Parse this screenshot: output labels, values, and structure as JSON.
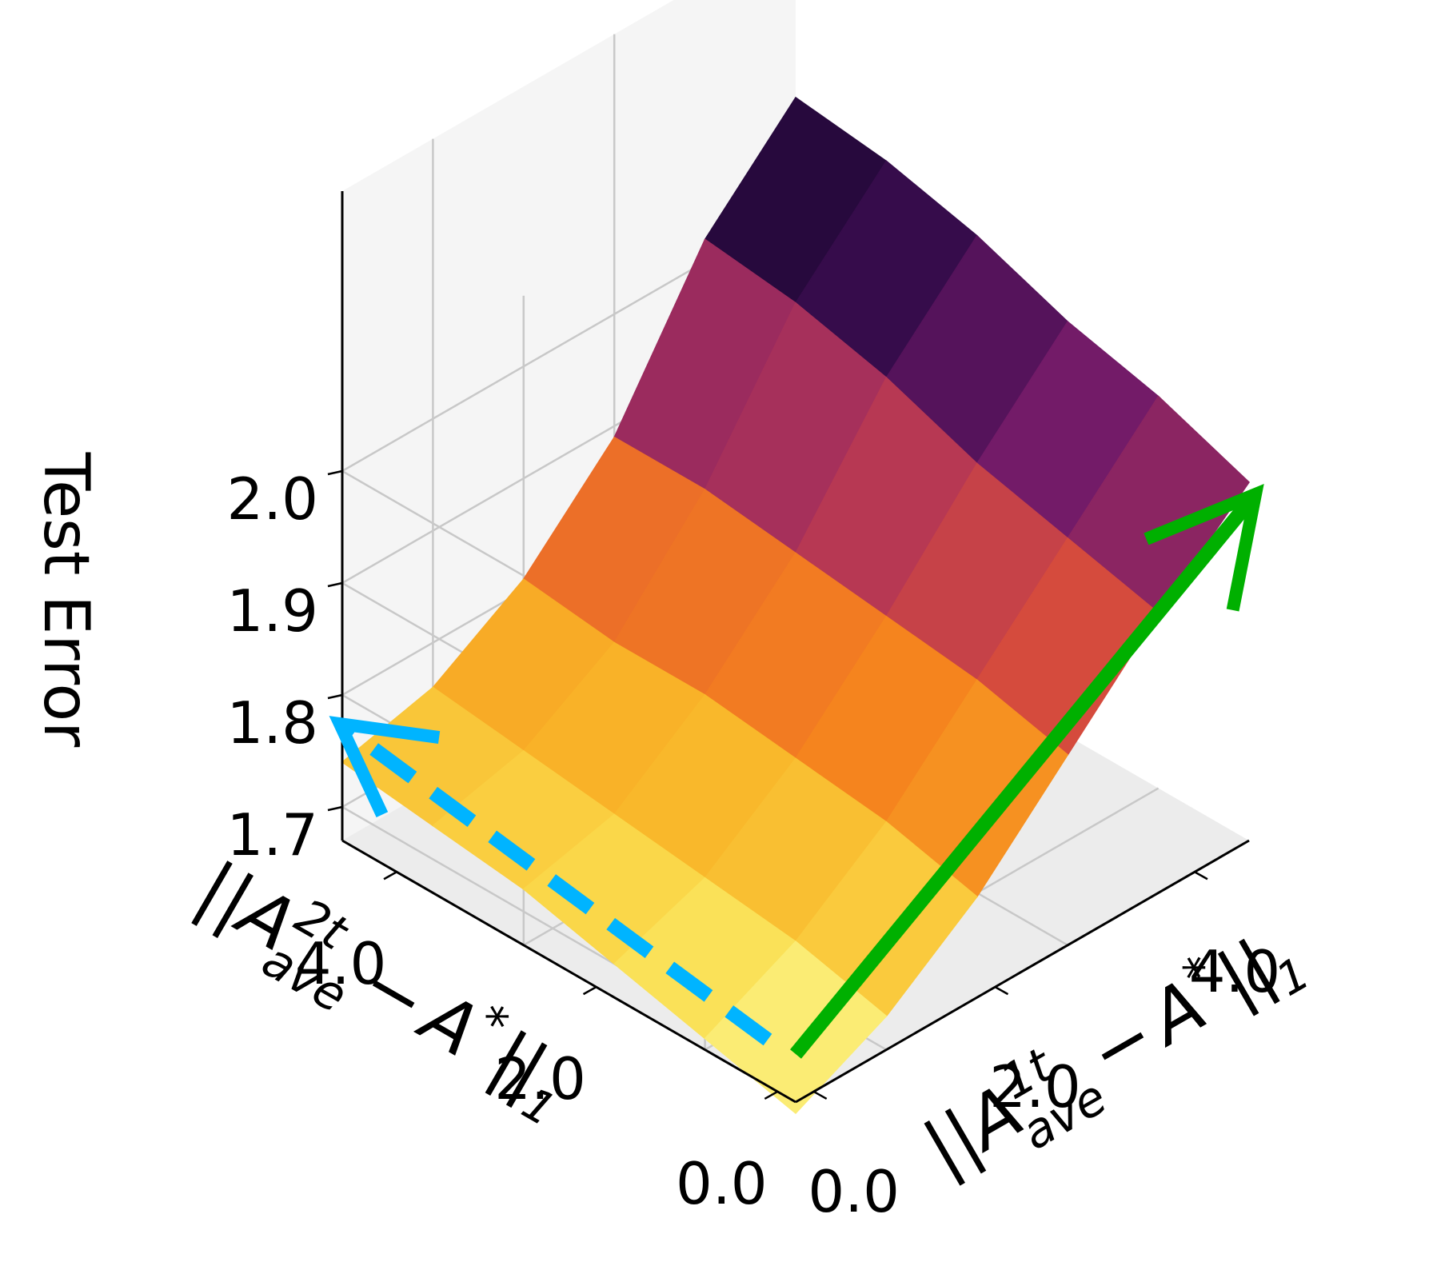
{
  "chart_data": {
    "type": "surface3d",
    "title": "",
    "zlabel": "Test Error",
    "xlabel": {
      "prefix": "||",
      "base": "A",
      "superscript": "1t",
      "subscript": "ave",
      "minus": "−",
      "rhs": "A",
      "rhs_superscript": "*",
      "suffix": "||",
      "suffix_subscript": "1"
    },
    "ylabel": {
      "prefix": "||",
      "base": "A",
      "superscript": "2t",
      "subscript": "ave",
      "minus": "−",
      "rhs": "A",
      "rhs_superscript": "*",
      "suffix": "||",
      "suffix_subscript": "1"
    },
    "xticks": [
      "0.0",
      "2.0",
      "4.0"
    ],
    "yticks": [
      "0.0",
      "2.0",
      "4.0"
    ],
    "zticks": [
      "1.7",
      "1.8",
      "1.9",
      "2.0"
    ],
    "x": [
      0,
      1,
      2,
      3,
      4,
      5
    ],
    "y": [
      0,
      1,
      2,
      3,
      4,
      5
    ],
    "xlim": [
      0,
      5
    ],
    "ylim": [
      0,
      5
    ],
    "zlim": [
      1.67,
      2.1
    ],
    "z": [
      [
        1.66,
        1.7,
        1.76,
        1.84,
        1.92,
        1.99
      ],
      [
        1.68,
        1.72,
        1.78,
        1.86,
        1.94,
        2.02
      ],
      [
        1.7,
        1.73,
        1.79,
        1.87,
        1.96,
        2.04
      ],
      [
        1.72,
        1.74,
        1.8,
        1.88,
        1.99,
        2.07
      ],
      [
        1.73,
        1.75,
        1.8,
        1.89,
        2.01,
        2.09
      ],
      [
        1.74,
        1.76,
        1.81,
        1.89,
        2.02,
        2.1
      ]
    ],
    "colormap": "inferno_r",
    "grid": true,
    "arrows": [
      {
        "name": "x-direction",
        "color": "#00b000",
        "style": "solid"
      },
      {
        "name": "y-direction",
        "color": "#00b4ff",
        "style": "dashed"
      }
    ],
    "colors": {
      "pane": "#f2f2f2",
      "grid": "#c8c8c8",
      "axis": "#000000",
      "green_arrow": "#00b000",
      "blue_arrow": "#00b4ff"
    }
  }
}
